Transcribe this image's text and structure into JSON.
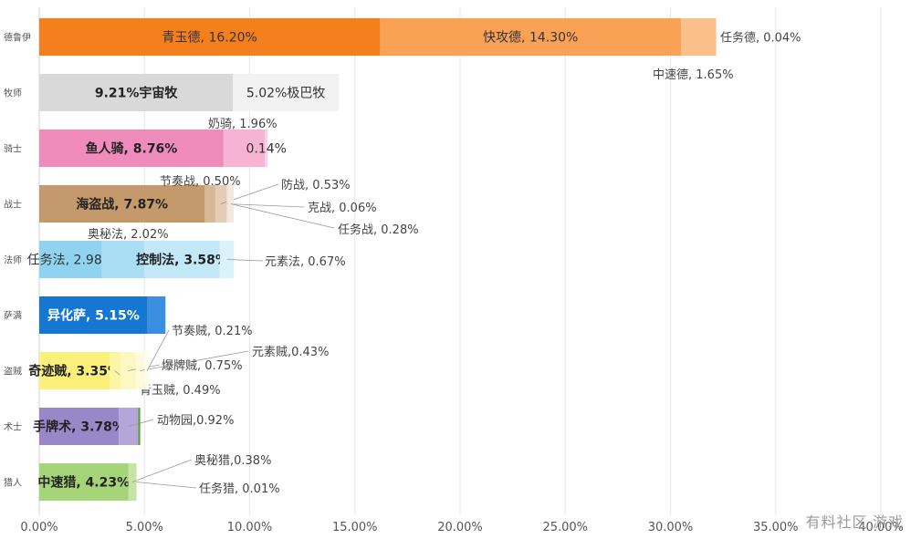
{
  "chart_data": {
    "type": "bar",
    "orientation": "horizontal",
    "stacked": true,
    "xlim": [
      0,
      40
    ],
    "x_ticks": [
      "0.00%",
      "5.00%",
      "10.00%",
      "15.00%",
      "20.00%",
      "25.00%",
      "30.00%",
      "35.00%",
      "40.00%"
    ],
    "grid": true,
    "categories": [
      "德鲁伊",
      "牧师",
      "骑士",
      "战士",
      "法师",
      "萨满",
      "盗贼",
      "术士",
      "猎人"
    ],
    "bars": [
      {
        "category": "德鲁伊",
        "segments": [
          {
            "name": "青玉德",
            "value": 16.2,
            "label": "青玉德, 16.20%",
            "color": "#f47f1c"
          },
          {
            "name": "快攻德",
            "value": 14.3,
            "label": "快攻德, 14.30%",
            "color": "#f9a154"
          },
          {
            "name": "中速德",
            "value": 1.65,
            "label": "中速德, 1.65%",
            "color": "#fbc08a"
          },
          {
            "name": "任务德",
            "value": 0.04,
            "label": "任务德, 0.04%",
            "color": "#fcd8b6"
          }
        ]
      },
      {
        "category": "牧师",
        "segments": [
          {
            "name": "宇宙牧",
            "value": 9.21,
            "label": "9.21%宇宙牧",
            "color": "#d9d9d9"
          },
          {
            "name": "极巴牧",
            "value": 5.02,
            "label": "5.02%极巴牧",
            "color": "#f2f2f2"
          }
        ]
      },
      {
        "category": "骑士",
        "segments": [
          {
            "name": "鱼人骑",
            "value": 8.76,
            "label": "鱼人骑, 8.76%",
            "color": "#f08cbc"
          },
          {
            "name": "奶骑",
            "value": 1.96,
            "label": "奶骑, 1.96%",
            "color": "#f6b3d3"
          },
          {
            "name": "other",
            "value": 0.14,
            "label": "0.14%",
            "color": "#f9cfe3"
          }
        ]
      },
      {
        "category": "战士",
        "segments": [
          {
            "name": "海盗战",
            "value": 7.87,
            "label": "海盗战, 7.87%",
            "color": "#c49a6c"
          },
          {
            "name": "节奏战",
            "value": 0.5,
            "label": "节奏战, 0.50%",
            "color": "#d7b897"
          },
          {
            "name": "防战",
            "value": 0.53,
            "label": "防战, 0.53%",
            "color": "#e3cdb4"
          },
          {
            "name": "克战",
            "value": 0.06,
            "label": "克战, 0.06%",
            "color": "#ecdecd"
          },
          {
            "name": "任务战",
            "value": 0.28,
            "label": "任务战, 0.28%",
            "color": "#f3e9dd"
          }
        ]
      },
      {
        "category": "法师",
        "segments": [
          {
            "name": "任务法",
            "value": 2.98,
            "label": "任务法, 2.98%",
            "color": "#8fd3f0"
          },
          {
            "name": "奥秘法",
            "value": 2.02,
            "label": "奥秘法, 2.02%",
            "color": "#a9def4"
          },
          {
            "name": "控制法",
            "value": 3.58,
            "label": "控制法, 3.58%",
            "color": "#c3e9f8"
          },
          {
            "name": "元素法",
            "value": 0.67,
            "label": "元素法, 0.67%",
            "color": "#dcf2fb"
          }
        ]
      },
      {
        "category": "萨满",
        "segments": [
          {
            "name": "异化萨",
            "value": 5.15,
            "label": "异化萨, 5.15%",
            "color": "#1677d2"
          },
          {
            "name": "other",
            "value": 0.85,
            "label": "",
            "color": "#3a8fe0"
          }
        ]
      },
      {
        "category": "盗贼",
        "segments": [
          {
            "name": "奇迹贼",
            "value": 3.35,
            "label": "奇迹贼, 3.35%",
            "color": "#fbf17a"
          },
          {
            "name": "青玉贼",
            "value": 0.49,
            "label": "青玉贼, 0.49%",
            "color": "#fcf5a3"
          },
          {
            "name": "爆牌贼",
            "value": 0.75,
            "label": "爆牌贼, 0.75%",
            "color": "#fdf8c2"
          },
          {
            "name": "元素贼",
            "value": 0.43,
            "label": "元素贼,0.43%",
            "color": "#fefadb"
          },
          {
            "name": "节奏贼",
            "value": 0.21,
            "label": "节奏贼, 0.21%",
            "color": "#fefcea"
          }
        ]
      },
      {
        "category": "术士",
        "segments": [
          {
            "name": "手牌术",
            "value": 3.78,
            "label": "手牌术, 3.78%",
            "color": "#9a87c8"
          },
          {
            "name": "动物园",
            "value": 0.92,
            "label": "动物园,0.92%",
            "color": "#b4a6d8"
          },
          {
            "name": "other",
            "value": 0.1,
            "label": "",
            "color": "#5c9e3a"
          }
        ]
      },
      {
        "category": "猎人",
        "segments": [
          {
            "name": "中速猎",
            "value": 4.23,
            "label": "中速猎, 4.23%",
            "color": "#a6d479"
          },
          {
            "name": "奥秘猎",
            "value": 0.38,
            "label": "奥秘猎,0.38%",
            "color": "#c5e4a6"
          },
          {
            "name": "任务猎",
            "value": 0.01,
            "label": "任务猎, 0.01%",
            "color": "#dff0cf"
          }
        ]
      }
    ]
  },
  "watermark": "有料社区 游戏"
}
